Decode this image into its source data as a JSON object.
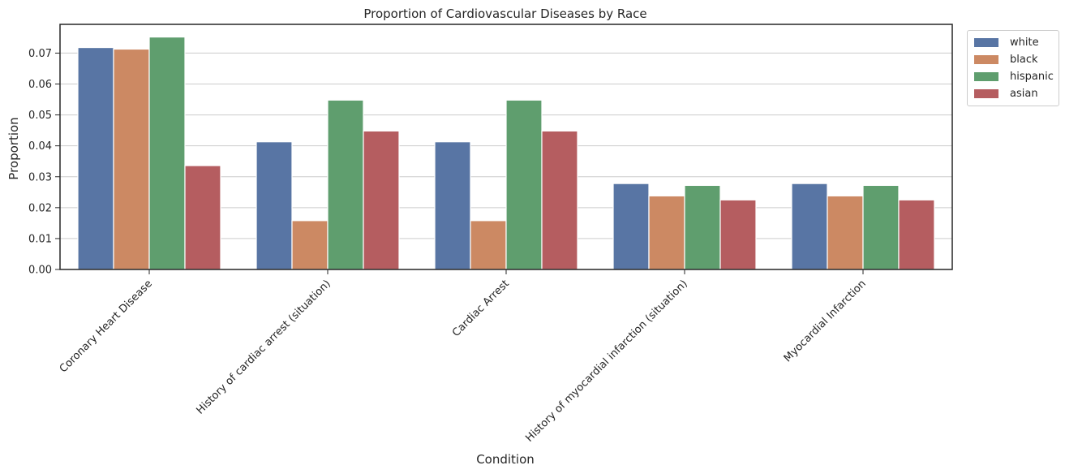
{
  "chart_data": {
    "type": "bar",
    "title": "Proportion of Cardiovascular Diseases by Race",
    "xlabel": "Condition",
    "ylabel": "Proportion",
    "categories": [
      "Coronary Heart Disease",
      "History of cardiac arrest (situation)",
      "Cardiac Arrest",
      "History of myocardial infarction (situation)",
      "Myocardial Infarction"
    ],
    "series": [
      {
        "name": "white",
        "color": "#5875a4",
        "values": [
          0.0718,
          0.0413,
          0.0413,
          0.0278,
          0.0278
        ]
      },
      {
        "name": "black",
        "color": "#cc8963",
        "values": [
          0.0713,
          0.0158,
          0.0158,
          0.0238,
          0.0238
        ]
      },
      {
        "name": "hispanic",
        "color": "#5f9e6e",
        "values": [
          0.0752,
          0.0548,
          0.0548,
          0.0272,
          0.0272
        ]
      },
      {
        "name": "asian",
        "color": "#b55d60",
        "values": [
          0.0336,
          0.0448,
          0.0448,
          0.0225,
          0.0225
        ]
      }
    ],
    "yticks": [
      "0.00",
      "0.01",
      "0.02",
      "0.03",
      "0.04",
      "0.05",
      "0.06",
      "0.07"
    ],
    "ylim": [
      0,
      0.0793
    ],
    "grid": "horizontal",
    "legend_position": "outside-right"
  }
}
